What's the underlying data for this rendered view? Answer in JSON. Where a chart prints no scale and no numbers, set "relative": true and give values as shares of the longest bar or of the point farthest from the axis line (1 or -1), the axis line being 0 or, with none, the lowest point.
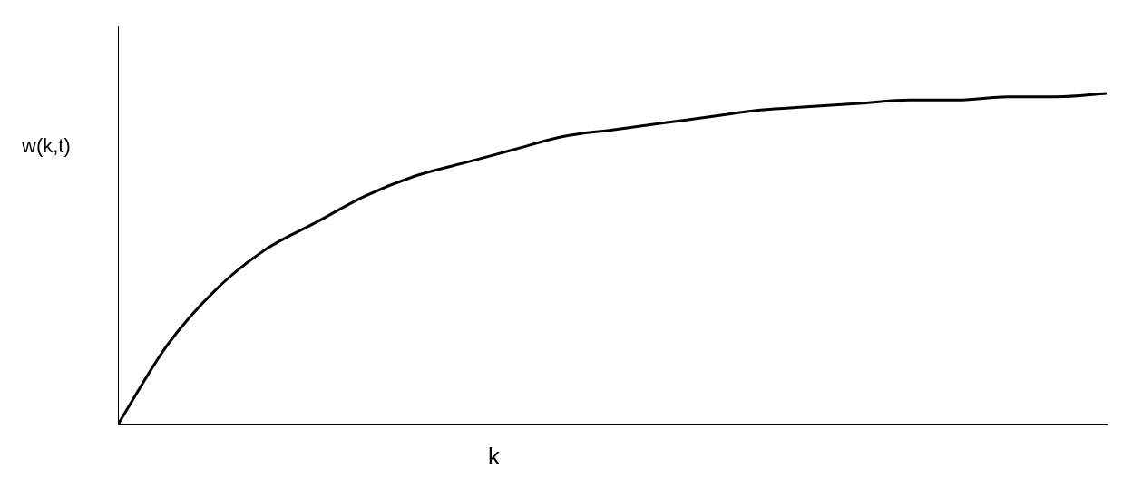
{
  "chart_data": {
    "type": "line",
    "xlabel": "k",
    "ylabel": "w(k,t)",
    "relative": true,
    "marker": "none",
    "line_style": "solid",
    "grid": false,
    "legend": false,
    "categories": [
      null,
      null,
      null,
      null,
      null,
      null,
      null,
      null,
      null,
      null,
      null,
      null,
      null,
      null,
      null,
      null,
      null,
      null,
      null,
      null,
      null
    ],
    "series": [
      {
        "color": "#000000",
        "values": [
          0,
          0.24,
          0.41,
          0.53,
          0.61,
          0.69,
          0.75,
          0.79,
          0.83,
          0.87,
          0.89,
          0.91,
          0.93,
          0.95,
          0.96,
          0.97,
          0.98,
          0.98,
          0.99,
          0.99,
          1
        ]
      }
    ]
  }
}
